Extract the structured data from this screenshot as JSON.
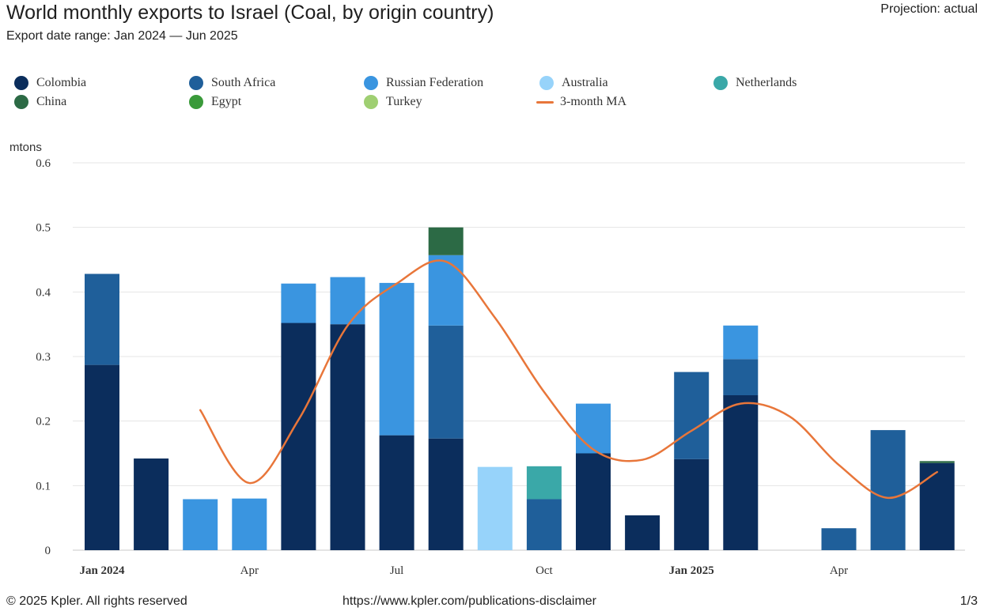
{
  "header": {
    "title": "World monthly exports to Israel (Coal, by origin country)",
    "subtitle": "Export date range: Jan 2024 — Jun 2025",
    "projection": "Projection: actual"
  },
  "legend": [
    {
      "label": "Colombia",
      "color": "#0b2d5c",
      "kind": "dot"
    },
    {
      "label": "South Africa",
      "color": "#1f5f9a",
      "kind": "dot"
    },
    {
      "label": "Russian Federation",
      "color": "#3a95e0",
      "kind": "dot"
    },
    {
      "label": "Australia",
      "color": "#97d3fa",
      "kind": "dot"
    },
    {
      "label": "Netherlands",
      "color": "#3aa8a8",
      "kind": "dot"
    },
    {
      "label": "China",
      "color": "#2c6a45",
      "kind": "dot"
    },
    {
      "label": "Egypt",
      "color": "#3a9a3a",
      "kind": "dot"
    },
    {
      "label": "Turkey",
      "color": "#9fcf72",
      "kind": "dot"
    },
    {
      "label": "3-month MA",
      "color": "#e8763a",
      "kind": "line"
    }
  ],
  "chart_data": {
    "type": "bar",
    "stacked": true,
    "title": "World monthly exports to Israel (Coal, by origin country)",
    "ylabel": "mtons",
    "ylim": [
      0,
      0.6
    ],
    "yticks": [
      "0",
      "0.1",
      "0.2",
      "0.3",
      "0.4",
      "0.5",
      "0.6"
    ],
    "categories": [
      "Jan 2024",
      "Feb 2024",
      "Mar 2024",
      "Apr 2024",
      "May 2024",
      "Jun 2024",
      "Jul 2024",
      "Aug 2024",
      "Sep 2024",
      "Oct 2024",
      "Nov 2024",
      "Dec 2024",
      "Jan 2025",
      "Feb 2025",
      "Mar 2025",
      "Apr 2025",
      "May 2025",
      "Jun 2025"
    ],
    "xtick_labels": [
      {
        "index": 0,
        "label": "Jan 2024",
        "bold": true
      },
      {
        "index": 3,
        "label": "Apr",
        "bold": false
      },
      {
        "index": 6,
        "label": "Jul",
        "bold": false
      },
      {
        "index": 9,
        "label": "Oct",
        "bold": false
      },
      {
        "index": 12,
        "label": "Jan 2025",
        "bold": true
      },
      {
        "index": 15,
        "label": "Apr",
        "bold": false
      }
    ],
    "series": [
      {
        "name": "Colombia",
        "color": "#0b2d5c",
        "values": [
          0.287,
          0.142,
          0,
          0,
          0.352,
          0.35,
          0.178,
          0.173,
          0,
          0,
          0.15,
          0.054,
          0.141,
          0.24,
          0,
          0,
          0,
          0.135
        ]
      },
      {
        "name": "South Africa",
        "color": "#1f5f9a",
        "values": [
          0.141,
          0,
          0,
          0,
          0,
          0,
          0,
          0.175,
          0,
          0.079,
          0,
          0,
          0.135,
          0.056,
          0,
          0.034,
          0.186,
          0
        ]
      },
      {
        "name": "Russian Federation",
        "color": "#3a95e0",
        "values": [
          0,
          0,
          0.079,
          0.08,
          0.061,
          0.073,
          0.236,
          0.109,
          0,
          0,
          0.077,
          0,
          0,
          0.052,
          0,
          0,
          0,
          0
        ]
      },
      {
        "name": "Australia",
        "color": "#97d3fa",
        "values": [
          0,
          0,
          0,
          0,
          0,
          0,
          0,
          0,
          0.129,
          0,
          0,
          0,
          0,
          0,
          0,
          0,
          0,
          0
        ]
      },
      {
        "name": "Netherlands",
        "color": "#3aa8a8",
        "values": [
          0,
          0,
          0,
          0,
          0,
          0,
          0,
          0,
          0,
          0.051,
          0,
          0,
          0,
          0,
          0,
          0,
          0,
          0
        ]
      },
      {
        "name": "China",
        "color": "#2c6a45",
        "values": [
          0,
          0,
          0,
          0,
          0,
          0,
          0,
          0.043,
          0,
          0,
          0,
          0,
          0,
          0,
          0,
          0,
          0,
          0.003
        ]
      },
      {
        "name": "Egypt",
        "color": "#3a9a3a",
        "values": [
          0,
          0,
          0,
          0,
          0,
          0,
          0,
          0,
          0,
          0,
          0,
          0,
          0,
          0,
          0,
          0,
          0,
          0
        ]
      },
      {
        "name": "Turkey",
        "color": "#9fcf72",
        "values": [
          0,
          0,
          0,
          0,
          0,
          0,
          0,
          0,
          0,
          0,
          0,
          0,
          0,
          0,
          0,
          0,
          0,
          0
        ]
      }
    ],
    "moving_average": {
      "name": "3-month MA",
      "color": "#e8763a",
      "start_index": 2,
      "values": [
        0.217,
        0.104,
        0.202,
        0.348,
        0.413,
        0.447,
        0.36,
        0.245,
        0.156,
        0.14,
        0.185,
        0.227,
        0.207,
        0.132,
        0.081,
        0.121
      ]
    }
  },
  "footer": {
    "copyright": "© 2025 Kpler. All rights reserved",
    "url": "https://www.kpler.com/publications-disclaimer",
    "page": "1/3"
  }
}
